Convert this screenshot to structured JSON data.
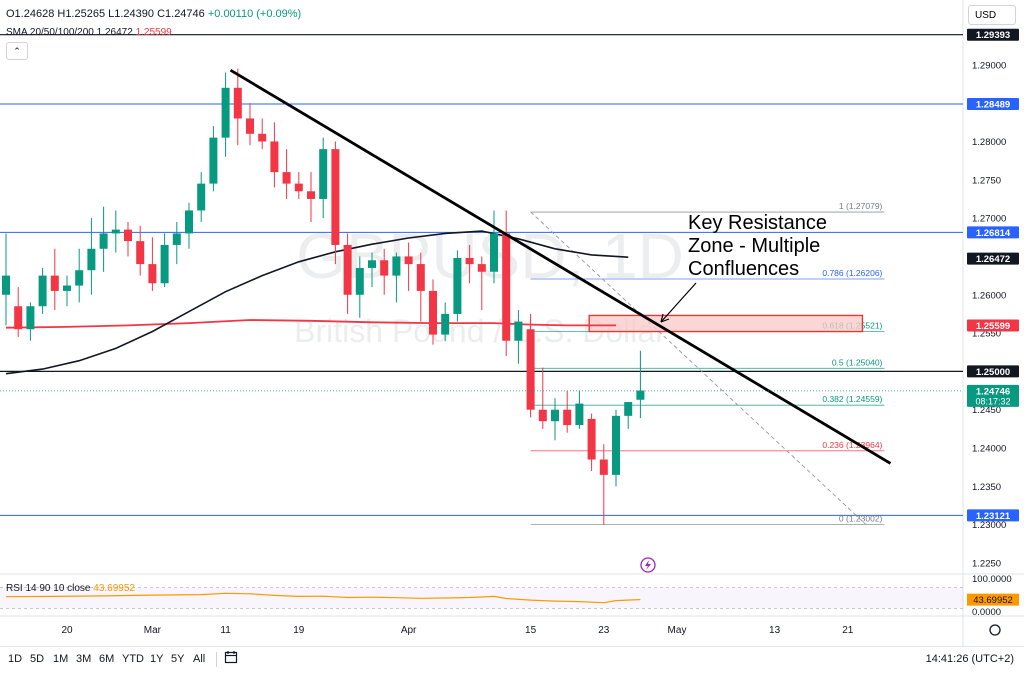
{
  "header": {
    "ohlc_prefix": "O1.24628 H1.25265 L1.24390 C1.24746",
    "ohlc_change": "+0.00110 (+0.09%)",
    "sma_label": "SMA 20/50/100/200",
    "sma_value_1": "1.26472",
    "sma_value_2": "1.25599",
    "currency": "USD",
    "collapse_icon": "chevron-up-icon"
  },
  "rsi": {
    "label": "RSI 14 90 10 close",
    "value": "43.69952",
    "scale_top": "100.0000",
    "scale_bottom": "0.0000"
  },
  "watermark": {
    "symbol": "GBPUSD, 1D",
    "name": "British Pound / U.S. Dollar"
  },
  "annotation": {
    "line1": "Key Resistance",
    "line2": "Zone - Multiple",
    "line3": "Confluences"
  },
  "toolbar": {
    "timeframes": [
      "1D",
      "5D",
      "1M",
      "3M",
      "6M",
      "YTD",
      "1Y",
      "5Y",
      "All"
    ],
    "calendar_icon": "calendar-icon",
    "clock": "14:41:26 (UTC+2)"
  },
  "colors": {
    "up": "#089981",
    "down": "#f23645",
    "sma_fast": "#131722",
    "sma_slow": "#f23645",
    "horizontal_level": "#2962ff",
    "rsi": "#ff9800",
    "zone_fill": "#f8c8c8",
    "zone_border": "#e53935"
  },
  "chart_data": {
    "type": "candlestick",
    "symbol": "GBPUSD",
    "timeframe": "1D",
    "title": "British Pound / U.S. Dollar",
    "ylim": [
      1.225,
      1.2935
    ],
    "y_ticks": [
      1.29,
      1.285,
      1.28,
      1.275,
      1.27,
      1.265,
      1.26,
      1.255,
      1.25,
      1.245,
      1.24,
      1.235,
      1.23,
      1.225
    ],
    "x_ticks": [
      {
        "label": "20",
        "slot": 5
      },
      {
        "label": "Mar",
        "slot": 12
      },
      {
        "label": "11",
        "slot": 18
      },
      {
        "label": "19",
        "slot": 24
      },
      {
        "label": "Apr",
        "slot": 33
      },
      {
        "label": "15",
        "slot": 43
      },
      {
        "label": "23",
        "slot": 49
      },
      {
        "label": "May",
        "slot": 55
      },
      {
        "label": "13",
        "slot": 63
      },
      {
        "label": "21",
        "slot": 69
      }
    ],
    "candles": [
      {
        "o": 1.26,
        "h": 1.268,
        "l": 1.256,
        "c": 1.2625
      },
      {
        "o": 1.2585,
        "h": 1.261,
        "l": 1.2545,
        "c": 1.2555
      },
      {
        "o": 1.2555,
        "h": 1.259,
        "l": 1.254,
        "c": 1.2585
      },
      {
        "o": 1.2585,
        "h": 1.2635,
        "l": 1.2575,
        "c": 1.2625
      },
      {
        "o": 1.2625,
        "h": 1.266,
        "l": 1.258,
        "c": 1.2605
      },
      {
        "o": 1.2605,
        "h": 1.2625,
        "l": 1.2585,
        "c": 1.2612
      },
      {
        "o": 1.2612,
        "h": 1.266,
        "l": 1.259,
        "c": 1.2632
      },
      {
        "o": 1.2632,
        "h": 1.27,
        "l": 1.26,
        "c": 1.266
      },
      {
        "o": 1.266,
        "h": 1.2715,
        "l": 1.263,
        "c": 1.268
      },
      {
        "o": 1.268,
        "h": 1.271,
        "l": 1.2655,
        "c": 1.2685
      },
      {
        "o": 1.2685,
        "h": 1.2695,
        "l": 1.265,
        "c": 1.267
      },
      {
        "o": 1.267,
        "h": 1.269,
        "l": 1.2625,
        "c": 1.264
      },
      {
        "o": 1.264,
        "h": 1.2675,
        "l": 1.2605,
        "c": 1.2615
      },
      {
        "o": 1.2615,
        "h": 1.268,
        "l": 1.261,
        "c": 1.2665
      },
      {
        "o": 1.2665,
        "h": 1.2695,
        "l": 1.264,
        "c": 1.268
      },
      {
        "o": 1.268,
        "h": 1.272,
        "l": 1.266,
        "c": 1.271
      },
      {
        "o": 1.271,
        "h": 1.276,
        "l": 1.2695,
        "c": 1.2745
      },
      {
        "o": 1.2745,
        "h": 1.282,
        "l": 1.2735,
        "c": 1.2805
      },
      {
        "o": 1.2805,
        "h": 1.289,
        "l": 1.278,
        "c": 1.287
      },
      {
        "o": 1.287,
        "h": 1.2895,
        "l": 1.2795,
        "c": 1.283
      },
      {
        "o": 1.283,
        "h": 1.285,
        "l": 1.2795,
        "c": 1.281
      },
      {
        "o": 1.281,
        "h": 1.283,
        "l": 1.279,
        "c": 1.28
      },
      {
        "o": 1.28,
        "h": 1.2825,
        "l": 1.274,
        "c": 1.276
      },
      {
        "o": 1.276,
        "h": 1.279,
        "l": 1.2725,
        "c": 1.2745
      },
      {
        "o": 1.2745,
        "h": 1.276,
        "l": 1.2725,
        "c": 1.2735
      },
      {
        "o": 1.2735,
        "h": 1.276,
        "l": 1.2695,
        "c": 1.2725
      },
      {
        "o": 1.2725,
        "h": 1.2805,
        "l": 1.27,
        "c": 1.279
      },
      {
        "o": 1.279,
        "h": 1.28,
        "l": 1.264,
        "c": 1.2665
      },
      {
        "o": 1.2665,
        "h": 1.268,
        "l": 1.2575,
        "c": 1.26
      },
      {
        "o": 1.26,
        "h": 1.265,
        "l": 1.257,
        "c": 1.2635
      },
      {
        "o": 1.2635,
        "h": 1.2655,
        "l": 1.261,
        "c": 1.2645
      },
      {
        "o": 1.2645,
        "h": 1.266,
        "l": 1.26,
        "c": 1.2625
      },
      {
        "o": 1.2625,
        "h": 1.2655,
        "l": 1.259,
        "c": 1.265
      },
      {
        "o": 1.265,
        "h": 1.2668,
        "l": 1.2605,
        "c": 1.264
      },
      {
        "o": 1.264,
        "h": 1.2655,
        "l": 1.2565,
        "c": 1.2605
      },
      {
        "o": 1.2605,
        "h": 1.262,
        "l": 1.2535,
        "c": 1.2548
      },
      {
        "o": 1.2548,
        "h": 1.259,
        "l": 1.254,
        "c": 1.2575
      },
      {
        "o": 1.2575,
        "h": 1.2658,
        "l": 1.2565,
        "c": 1.2648
      },
      {
        "o": 1.2648,
        "h": 1.2665,
        "l": 1.2615,
        "c": 1.264
      },
      {
        "o": 1.264,
        "h": 1.265,
        "l": 1.258,
        "c": 1.263
      },
      {
        "o": 1.263,
        "h": 1.271,
        "l": 1.2615,
        "c": 1.268
      },
      {
        "o": 1.268,
        "h": 1.271,
        "l": 1.252,
        "c": 1.254
      },
      {
        "o": 1.254,
        "h": 1.258,
        "l": 1.251,
        "c": 1.2565
      },
      {
        "o": 1.2555,
        "h": 1.2575,
        "l": 1.244,
        "c": 1.245
      },
      {
        "o": 1.245,
        "h": 1.2505,
        "l": 1.2425,
        "c": 1.2435
      },
      {
        "o": 1.2435,
        "h": 1.2465,
        "l": 1.241,
        "c": 1.245
      },
      {
        "o": 1.245,
        "h": 1.2475,
        "l": 1.242,
        "c": 1.243
      },
      {
        "o": 1.243,
        "h": 1.2475,
        "l": 1.2425,
        "c": 1.2458
      },
      {
        "o": 1.2438,
        "h": 1.2445,
        "l": 1.237,
        "c": 1.2385
      },
      {
        "o": 1.2385,
        "h": 1.2405,
        "l": 1.23,
        "c": 1.2365
      },
      {
        "o": 1.2365,
        "h": 1.245,
        "l": 1.235,
        "c": 1.2442
      },
      {
        "o": 1.2442,
        "h": 1.246,
        "l": 1.2425,
        "c": 1.246
      },
      {
        "o": 1.2463,
        "h": 1.2527,
        "l": 1.2439,
        "c": 1.2475
      }
    ],
    "sma_fast_points": [
      {
        "slot": 0,
        "y": 1.2497
      },
      {
        "slot": 3,
        "y": 1.2503
      },
      {
        "slot": 6,
        "y": 1.2514
      },
      {
        "slot": 9,
        "y": 1.253
      },
      {
        "slot": 12,
        "y": 1.2552
      },
      {
        "slot": 15,
        "y": 1.2578
      },
      {
        "slot": 18,
        "y": 1.2604
      },
      {
        "slot": 21,
        "y": 1.2625
      },
      {
        "slot": 24,
        "y": 1.2643
      },
      {
        "slot": 27,
        "y": 1.2656
      },
      {
        "slot": 30,
        "y": 1.2666
      },
      {
        "slot": 33,
        "y": 1.2674
      },
      {
        "slot": 36,
        "y": 1.268
      },
      {
        "slot": 39,
        "y": 1.2683
      },
      {
        "slot": 42,
        "y": 1.2673
      },
      {
        "slot": 45,
        "y": 1.266
      },
      {
        "slot": 48,
        "y": 1.2652
      },
      {
        "slot": 51,
        "y": 1.2649
      }
    ],
    "sma_slow_points": [
      {
        "slot": 0,
        "y": 1.2557
      },
      {
        "slot": 5,
        "y": 1.2558
      },
      {
        "slot": 10,
        "y": 1.256
      },
      {
        "slot": 15,
        "y": 1.2563
      },
      {
        "slot": 20,
        "y": 1.2567
      },
      {
        "slot": 25,
        "y": 1.2566
      },
      {
        "slot": 30,
        "y": 1.2564
      },
      {
        "slot": 35,
        "y": 1.2563
      },
      {
        "slot": 40,
        "y": 1.2563
      },
      {
        "slot": 43,
        "y": 1.2561
      },
      {
        "slot": 46,
        "y": 1.256
      },
      {
        "slot": 50,
        "y": 1.256
      }
    ],
    "horizontal_levels": [
      {
        "value": 1.29393,
        "label": "1.29393",
        "color": "#131722",
        "width": 1.2
      },
      {
        "value": 1.28489,
        "label": "1.28489",
        "color": "#2962ff",
        "width": 1
      },
      {
        "value": 1.26814,
        "label": "1.26814",
        "color": "#2962ff",
        "width": 1
      },
      {
        "value": 1.25,
        "label": "1.25000",
        "color": "#131722",
        "width": 1.2
      },
      {
        "value": 1.23121,
        "label": "1.23121",
        "color": "#2962ff",
        "width": 1
      }
    ],
    "price_tags": [
      {
        "value": 1.26472,
        "label": "1.26472",
        "bg": "#131722",
        "fg": "#ffffff"
      },
      {
        "value": 1.25599,
        "label": "1.25599",
        "bg": "#f23645",
        "fg": "#ffffff"
      },
      {
        "value": 1.24746,
        "label": "1.24746",
        "sub": "08:17:32",
        "bg": "#089981",
        "fg": "#ffffff"
      }
    ],
    "fibonacci": {
      "start_slot": 43,
      "end_slot": 72,
      "levels": [
        {
          "ratio": "1",
          "value": 1.27079,
          "label": "1 (1.27079)",
          "color": "#787b86"
        },
        {
          "ratio": "0.786",
          "value": 1.26206,
          "label": "0.786 (1.26206)",
          "color": "#2962ff"
        },
        {
          "ratio": "0.618",
          "value": 1.25521,
          "label": "0.618 (1.25521)",
          "color": "#089981"
        },
        {
          "ratio": "0.5",
          "value": 1.2504,
          "label": "0.5 (1.25040)",
          "color": "#089981"
        },
        {
          "ratio": "0.382",
          "value": 1.24559,
          "label": "0.382 (1.24559)",
          "color": "#089981"
        },
        {
          "ratio": "0.236",
          "value": 1.23964,
          "label": "0.236 (1.23964)",
          "color": "#f23645"
        },
        {
          "ratio": "0",
          "value": 1.23002,
          "label": "0 (1.23002)",
          "color": "#787b86"
        }
      ]
    },
    "trendline": {
      "from": {
        "slot": 18.4,
        "y": 1.2893
      },
      "to": {
        "slot": 72.5,
        "y": 1.238
      }
    },
    "fib_diagonal": {
      "from": {
        "slot": 43,
        "y": 1.2708
      },
      "to": {
        "slot": 70.5,
        "y": 1.23
      }
    },
    "resistance_zone": {
      "from_slot": 47.8,
      "to_slot": 70.2,
      "top": 1.2573,
      "bottom": 1.2552
    },
    "rsi_series": [
      {
        "slot": 0,
        "v": 55
      },
      {
        "slot": 4,
        "v": 56
      },
      {
        "slot": 8,
        "v": 58
      },
      {
        "slot": 12,
        "v": 61
      },
      {
        "slot": 16,
        "v": 63
      },
      {
        "slot": 18,
        "v": 68
      },
      {
        "slot": 20,
        "v": 66
      },
      {
        "slot": 22,
        "v": 60
      },
      {
        "slot": 24,
        "v": 56
      },
      {
        "slot": 26,
        "v": 57
      },
      {
        "slot": 28,
        "v": 52
      },
      {
        "slot": 30,
        "v": 53
      },
      {
        "slot": 32,
        "v": 51
      },
      {
        "slot": 34,
        "v": 49
      },
      {
        "slot": 36,
        "v": 50
      },
      {
        "slot": 38,
        "v": 52
      },
      {
        "slot": 40,
        "v": 56
      },
      {
        "slot": 41,
        "v": 48
      },
      {
        "slot": 43,
        "v": 42
      },
      {
        "slot": 45,
        "v": 38
      },
      {
        "slot": 47,
        "v": 36
      },
      {
        "slot": 49,
        "v": 32
      },
      {
        "slot": 50,
        "v": 40
      },
      {
        "slot": 52,
        "v": 43.7
      }
    ]
  }
}
